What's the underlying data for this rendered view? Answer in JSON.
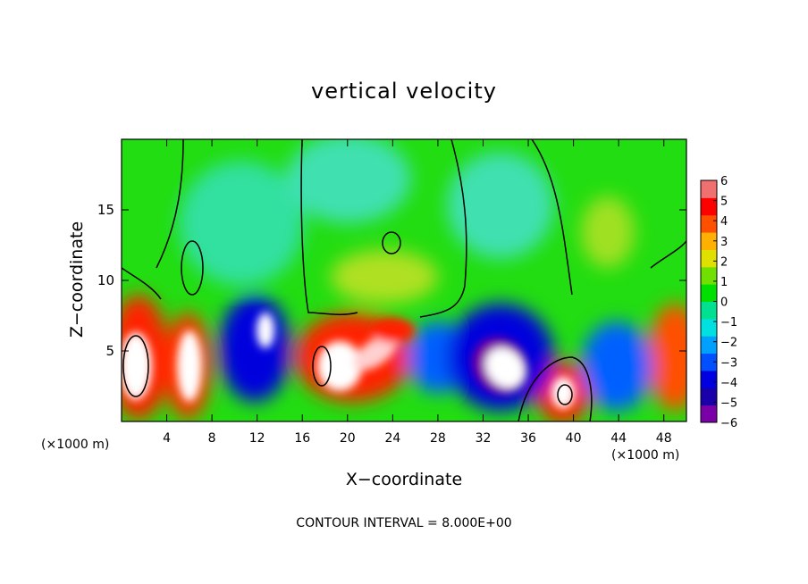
{
  "chart_data": {
    "type": "heatmap",
    "title": "vertical velocity",
    "xlabel": "X−coordinate",
    "ylabel": "Z−coordinate",
    "x_unit_label": "(×1000 m)",
    "x_ticks": [
      4,
      8,
      12,
      16,
      20,
      24,
      28,
      32,
      36,
      40,
      44,
      48
    ],
    "y_ticks": [
      5,
      10,
      15
    ],
    "xlim": [
      0,
      50
    ],
    "ylim": [
      0,
      20
    ],
    "colorbar": {
      "ticks": [
        6,
        5,
        4,
        3,
        2,
        1,
        0,
        -1,
        -2,
        -3,
        -4,
        -5,
        -6
      ],
      "tick_labels": [
        "6",
        "5",
        "4",
        "3",
        "2",
        "1",
        "0",
        "−1",
        "−2",
        "−3",
        "−4",
        "−5",
        "−6"
      ],
      "range": [
        -6,
        6
      ],
      "colors": [
        "#7a00a8",
        "#1a00a8",
        "#0000e0",
        "#0050ff",
        "#00a0ff",
        "#00e0e0",
        "#00e090",
        "#00e000",
        "#70e000",
        "#e0e000",
        "#ffb000",
        "#ff5000",
        "#ff0000",
        "#f07070"
      ]
    },
    "features": [
      {
        "x": 1.2,
        "z": 4.8,
        "w": 6.0,
        "sign": "positive"
      },
      {
        "x": 6.0,
        "z": 4.5,
        "w": 5.0,
        "sign": "positive"
      },
      {
        "x": 12.0,
        "z": 6.0,
        "w": -5.0,
        "sign": "negative"
      },
      {
        "x": 18.5,
        "z": 4.5,
        "w": 5.5,
        "sign": "positive"
      },
      {
        "x": 22.5,
        "z": 5.0,
        "w": 4.5,
        "sign": "positive"
      },
      {
        "x": 33.0,
        "z": 4.5,
        "w": -6.0,
        "sign": "negative"
      },
      {
        "x": 39.0,
        "z": 2.5,
        "w": 5.5,
        "sign": "positive"
      },
      {
        "x": 48.5,
        "z": 5.0,
        "w": 4.0,
        "sign": "positive"
      }
    ],
    "contour_interval_note": "CONTOUR INTERVAL = 8.000E+00"
  }
}
